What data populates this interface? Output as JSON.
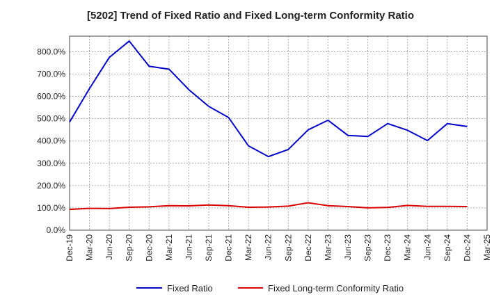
{
  "chart_data": {
    "type": "line",
    "title": "[5202]  Trend of Fixed Ratio and Fixed Long-term Conformity Ratio",
    "xlabel": "",
    "ylabel": "",
    "ylim": [
      0,
      870
    ],
    "yticks": [
      0,
      100,
      200,
      300,
      400,
      500,
      600,
      700,
      800
    ],
    "ytick_labels": [
      "0.0%",
      "100.0%",
      "200.0%",
      "300.0%",
      "400.0%",
      "500.0%",
      "600.0%",
      "700.0%",
      "800.0%"
    ],
    "x_tick_labels": [
      "Dec-19",
      "Mar-20",
      "Jun-20",
      "Sep-20",
      "Dec-20",
      "Mar-21",
      "Jun-21",
      "Sep-21",
      "Dec-21",
      "Mar-22",
      "Jun-22",
      "Sep-22",
      "Dec-22",
      "Mar-23",
      "Jun-23",
      "Sep-23",
      "Dec-23",
      "Mar-24",
      "Jun-24",
      "Sep-24",
      "Dec-24",
      "Mar-25"
    ],
    "grid": true,
    "legend_position": "bottom",
    "series": [
      {
        "name": "Fixed Ratio",
        "color": "#0000cc",
        "x": [
          "Dec-19",
          "Mar-20",
          "Jun-20",
          "Sep-20",
          "Dec-20",
          "Mar-21",
          "Jun-21",
          "Sep-21",
          "Dec-21",
          "Mar-22",
          "Jun-22",
          "Sep-22",
          "Dec-22",
          "Mar-23",
          "Jun-23",
          "Sep-23",
          "Dec-23",
          "Mar-24",
          "Jun-24",
          "Sep-24",
          "Dec-24"
        ],
        "values": [
          485,
          635,
          775,
          848,
          735,
          722,
          630,
          555,
          505,
          378,
          330,
          362,
          450,
          493,
          425,
          420,
          478,
          448,
          402,
          478,
          465
        ]
      },
      {
        "name": "Fixed Long-term Conformity Ratio",
        "color": "#dd0000",
        "x": [
          "Dec-19",
          "Mar-20",
          "Jun-20",
          "Sep-20",
          "Dec-20",
          "Mar-21",
          "Jun-21",
          "Sep-21",
          "Dec-21",
          "Mar-22",
          "Jun-22",
          "Sep-22",
          "Dec-22",
          "Mar-23",
          "Jun-23",
          "Sep-23",
          "Dec-23",
          "Mar-24",
          "Jun-24",
          "Sep-24",
          "Dec-24"
        ],
        "values": [
          93,
          98,
          97,
          103,
          105,
          110,
          109,
          113,
          110,
          103,
          104,
          108,
          123,
          110,
          106,
          100,
          102,
          111,
          107,
          107,
          106
        ]
      }
    ]
  }
}
